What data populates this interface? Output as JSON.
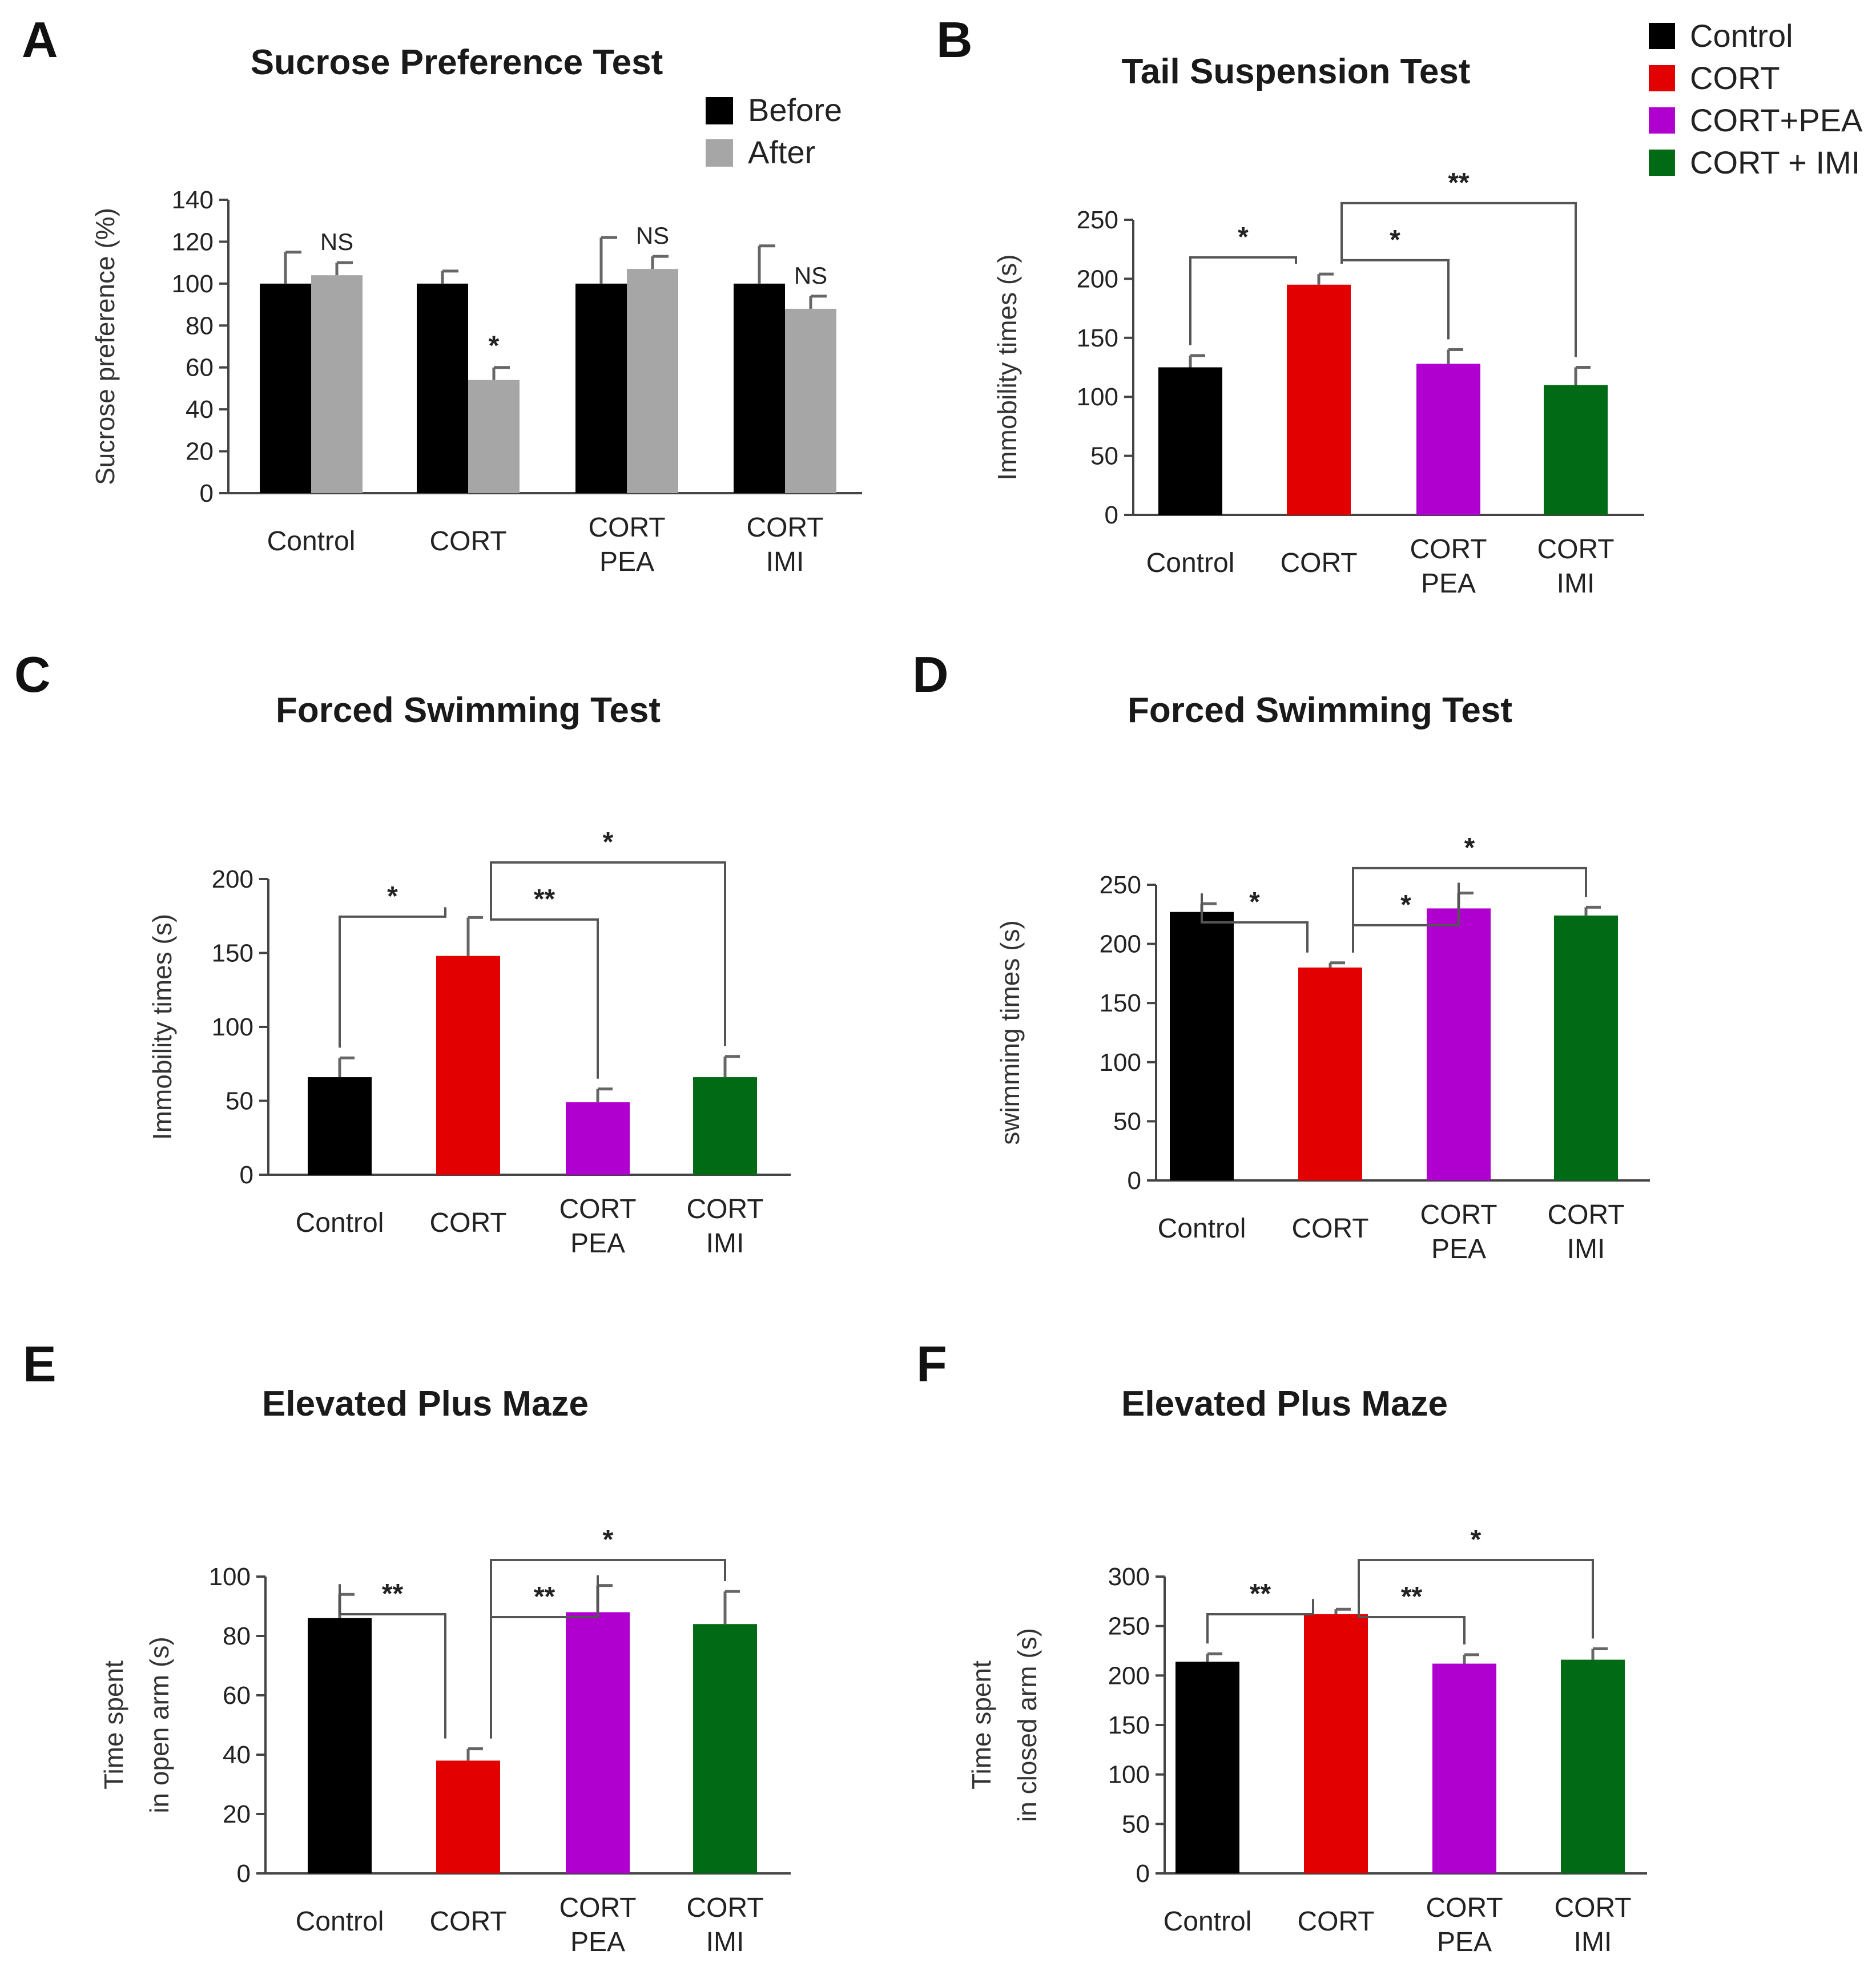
{
  "legend_groups": [
    {
      "label": "Control",
      "color": "#000000"
    },
    {
      "label": "CORT",
      "color": "#e20000"
    },
    {
      "label": "CORT+PEA",
      "color": "#b000d0"
    },
    {
      "label": "CORT + IMI",
      "color": "#006a14"
    }
  ],
  "chart_data": [
    {
      "panel": "A",
      "type": "bar",
      "title": "Sucrose Preference Test",
      "ylabel": "Sucrose preference (%)",
      "ylim": [
        0,
        140
      ],
      "yticks": [
        0,
        20,
        40,
        60,
        80,
        100,
        120,
        140
      ],
      "categories": [
        [
          "Control"
        ],
        [
          "CORT"
        ],
        [
          "CORT",
          "PEA"
        ],
        [
          "CORT",
          "IMI"
        ]
      ],
      "legend": [
        {
          "label": "Before",
          "color": "#000000"
        },
        {
          "label": "After",
          "color": "#a6a6a6"
        }
      ],
      "series": [
        {
          "name": "Before",
          "color": "#000000",
          "values": [
            100,
            100,
            100,
            100
          ],
          "errors": [
            15,
            6,
            22,
            18
          ]
        },
        {
          "name": "After",
          "color": "#a6a6a6",
          "values": [
            104,
            54,
            107,
            88
          ],
          "errors": [
            6,
            6,
            6,
            6
          ]
        }
      ],
      "annotations": [
        {
          "category": 0,
          "series": 1,
          "text": "NS"
        },
        {
          "category": 1,
          "series": 1,
          "text": "*"
        },
        {
          "category": 2,
          "series": 1,
          "text": "NS"
        },
        {
          "category": 3,
          "series": 1,
          "text": "NS"
        }
      ]
    },
    {
      "panel": "B",
      "type": "bar",
      "title": "Tail Suspension Test",
      "ylabel": "Immobility times (s)",
      "ylim": [
        0,
        250
      ],
      "yticks": [
        0,
        50,
        100,
        150,
        200,
        250
      ],
      "categories": [
        [
          "Control"
        ],
        [
          "CORT"
        ],
        [
          "CORT",
          "PEA"
        ],
        [
          "CORT",
          "IMI"
        ]
      ],
      "colors": [
        "#000000",
        "#e20000",
        "#b000d0",
        "#006a14"
      ],
      "values": [
        125,
        195,
        128,
        110
      ],
      "errors": [
        10,
        9,
        12,
        15
      ],
      "brackets": [
        {
          "from": 0,
          "to": 1,
          "text": "*"
        },
        {
          "from": 1,
          "to": 2,
          "text": "*"
        },
        {
          "from": 1,
          "to": 3,
          "text": "**"
        }
      ]
    },
    {
      "panel": "C",
      "type": "bar",
      "title": "Forced Swimming Test",
      "ylabel": "Immobility times (s)",
      "ylim": [
        0,
        200
      ],
      "yticks": [
        0,
        50,
        100,
        150,
        200
      ],
      "categories": [
        [
          "Control"
        ],
        [
          "CORT"
        ],
        [
          "CORT",
          "PEA"
        ],
        [
          "CORT",
          "IMI"
        ]
      ],
      "colors": [
        "#000000",
        "#e20000",
        "#b000d0",
        "#006a14"
      ],
      "values": [
        66,
        148,
        49,
        66
      ],
      "errors": [
        13,
        26,
        9,
        14
      ],
      "brackets": [
        {
          "from": 0,
          "to": 1,
          "text": "*"
        },
        {
          "from": 1,
          "to": 2,
          "text": "**"
        },
        {
          "from": 1,
          "to": 3,
          "text": "*"
        }
      ]
    },
    {
      "panel": "D",
      "type": "bar",
      "title": "Forced Swimming Test",
      "ylabel": "swimming times (s)",
      "ylim": [
        0,
        250
      ],
      "yticks": [
        0,
        50,
        100,
        150,
        200,
        250
      ],
      "categories": [
        [
          "Control"
        ],
        [
          "CORT"
        ],
        [
          "CORT",
          "PEA"
        ],
        [
          "CORT",
          "IMI"
        ]
      ],
      "colors": [
        "#000000",
        "#e20000",
        "#b000d0",
        "#006a14"
      ],
      "values": [
        227,
        180,
        230,
        224
      ],
      "errors": [
        7,
        4,
        13,
        7
      ],
      "brackets": [
        {
          "from": 0,
          "to": 1,
          "text": "*"
        },
        {
          "from": 1,
          "to": 2,
          "text": "*"
        },
        {
          "from": 1,
          "to": 3,
          "text": "*"
        }
      ]
    },
    {
      "panel": "E",
      "type": "bar",
      "title": "Elevated Plus Maze",
      "ylabel": [
        "Time spent",
        "in open arm (s)"
      ],
      "ylim": [
        0,
        100
      ],
      "yticks": [
        0,
        20,
        40,
        60,
        80,
        100
      ],
      "categories": [
        [
          "Control"
        ],
        [
          "CORT"
        ],
        [
          "CORT",
          "PEA"
        ],
        [
          "CORT",
          "IMI"
        ]
      ],
      "colors": [
        "#000000",
        "#e20000",
        "#b000d0",
        "#006a14"
      ],
      "values": [
        86,
        38,
        88,
        84
      ],
      "errors": [
        8,
        4,
        9,
        11
      ],
      "brackets": [
        {
          "from": 0,
          "to": 1,
          "text": "**"
        },
        {
          "from": 1,
          "to": 2,
          "text": "**"
        },
        {
          "from": 1,
          "to": 3,
          "text": "*"
        }
      ]
    },
    {
      "panel": "F",
      "type": "bar",
      "title": "Elevated Plus Maze",
      "ylabel": [
        "Time spent",
        "in closed arm (s)"
      ],
      "ylim": [
        0,
        300
      ],
      "yticks": [
        0,
        50,
        100,
        150,
        200,
        250,
        300
      ],
      "categories": [
        [
          "Control"
        ],
        [
          "CORT"
        ],
        [
          "CORT",
          "PEA"
        ],
        [
          "CORT",
          "IMI"
        ]
      ],
      "colors": [
        "#000000",
        "#e20000",
        "#b000d0",
        "#006a14"
      ],
      "values": [
        214,
        262,
        212,
        216
      ],
      "errors": [
        8,
        5,
        9,
        11
      ],
      "brackets": [
        {
          "from": 0,
          "to": 1,
          "text": "**"
        },
        {
          "from": 1,
          "to": 2,
          "text": "**"
        },
        {
          "from": 1,
          "to": 3,
          "text": "*"
        }
      ]
    }
  ]
}
